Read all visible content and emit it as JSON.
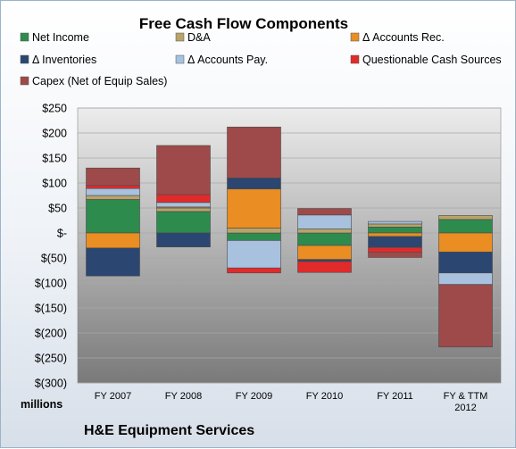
{
  "chart_data": {
    "type": "bar",
    "stacked": true,
    "title": "Free Cash Flow Components",
    "unit_label": "millions",
    "company": "H&E Equipment Services",
    "categories": [
      "FY 2007",
      "FY 2008",
      "FY 2009",
      "FY 2010",
      "FY 2011",
      [
        "FY & TTM",
        "2012"
      ]
    ],
    "ylim": [
      -300,
      250
    ],
    "yticks": [
      250,
      200,
      150,
      100,
      50,
      0,
      -50,
      -100,
      -150,
      -200,
      -250,
      -300
    ],
    "ytick_labels": [
      "$250",
      "$200",
      "$150",
      "$100",
      "$50",
      "$-",
      "$(50)",
      "$(100)",
      "$(150)",
      "$(200)",
      "$(250)",
      "$(300)"
    ],
    "legend_position": "top",
    "grid": true,
    "series": [
      {
        "name": "Net Income",
        "color": "#2e8b4e",
        "values": [
          67,
          43,
          -15,
          -25,
          12,
          27
        ]
      },
      {
        "name": "D&A",
        "color": "#b9a36a",
        "values": [
          8,
          7,
          10,
          8,
          6,
          8
        ]
      },
      {
        "name": "Δ Accounts Rec.",
        "color": "#ea8d22",
        "values": [
          -30,
          2,
          78,
          -28,
          -7,
          -38
        ]
      },
      {
        "name": "Δ Inventories",
        "color": "#2b4670",
        "values": [
          -56,
          -28,
          22,
          -4,
          -22,
          -42
        ]
      },
      {
        "name": "Δ Accounts Pay.",
        "color": "#a7c1df",
        "values": [
          14,
          9,
          -55,
          28,
          5,
          -23
        ]
      },
      {
        "name": "Questionable Cash Sources",
        "color": "#e12a2a",
        "values": [
          6,
          16,
          -10,
          -22,
          -9,
          0
        ]
      },
      {
        "name": "Capex (Net of Equip Sales)",
        "color": "#9e4a4a",
        "values": [
          35,
          98,
          102,
          13,
          -11,
          -125
        ]
      }
    ]
  },
  "colors": {
    "plot_bg_top": "#ececec",
    "plot_bg_bottom": "#7a7a7a",
    "frame_border": "#9bb3c9"
  }
}
